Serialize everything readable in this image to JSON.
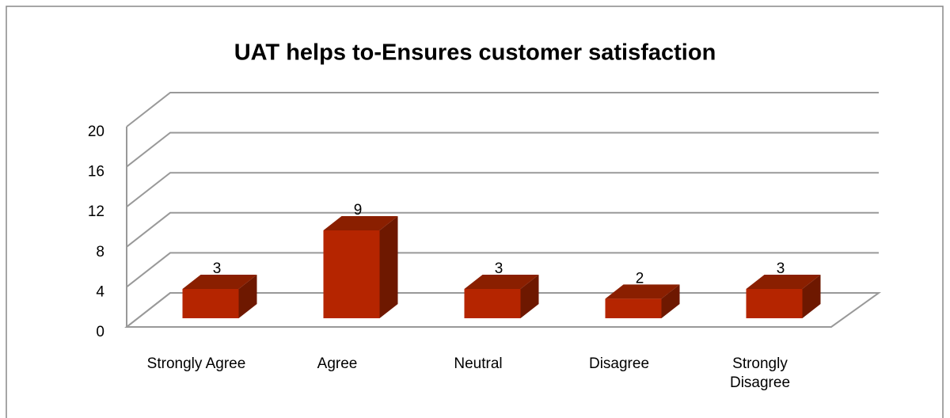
{
  "chart_data": {
    "type": "bar3d",
    "title": "UAT helps to-Ensures customer satisfaction",
    "categories": [
      "Strongly Agree",
      "Agree",
      "Neutral",
      "Disagree",
      "Strongly Disagree"
    ],
    "values": [
      3,
      9,
      3,
      2,
      3
    ],
    "color": "#b52500",
    "ylim": [
      0,
      20
    ],
    "yticks": [
      0,
      4,
      8,
      12,
      16,
      20
    ],
    "grid": true
  }
}
